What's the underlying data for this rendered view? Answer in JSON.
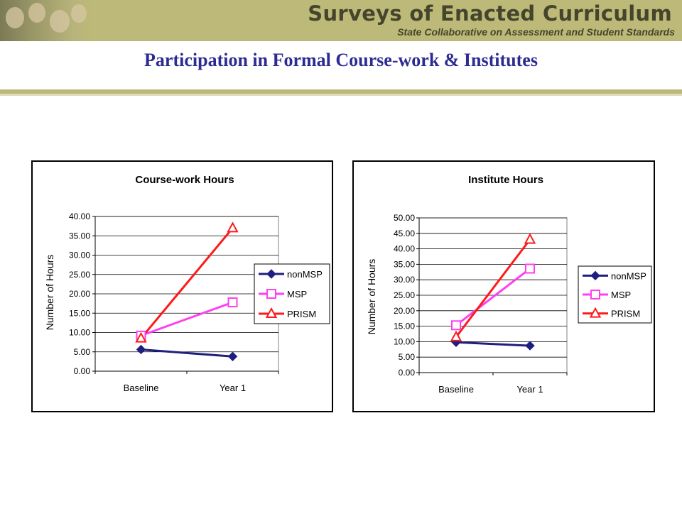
{
  "banner": {
    "title": "Surveys of Enacted Curriculum",
    "subtitle": "State Collaborative on Assessment and Student Standards"
  },
  "page_title": "Participation in Formal Course-work & Institutes",
  "colors": {
    "banner": "#bdb978",
    "title": "#2c2b91",
    "nonMSP": "#1f1f80",
    "MSP": "#ff3ff2",
    "PRISM": "#ff1a1a",
    "plot_bg": "#ffffff"
  },
  "chart_data": [
    {
      "type": "line",
      "title": "Course-work Hours",
      "ylabel": "Number of Hours",
      "xlabel": "",
      "categories": [
        "Baseline",
        "Year 1"
      ],
      "ylim": [
        0,
        40
      ],
      "ystep": 5,
      "ytick_labels": [
        "0.00",
        "5.00",
        "10.00",
        "15.00",
        "20.00",
        "25.00",
        "30.00",
        "35.00",
        "40.00"
      ],
      "grid": true,
      "legend": "right",
      "series": [
        {
          "name": "nonMSP",
          "values": [
            5.6,
            3.8
          ],
          "marker": "diamond",
          "color": "#1f1f80"
        },
        {
          "name": "MSP",
          "values": [
            9.2,
            17.8
          ],
          "marker": "square",
          "color": "#ff3ff2"
        },
        {
          "name": "PRISM",
          "values": [
            8.5,
            37.0
          ],
          "marker": "triangle",
          "color": "#ff1a1a"
        }
      ]
    },
    {
      "type": "line",
      "title": "Institute Hours",
      "ylabel": "Number of Hours",
      "xlabel": "",
      "categories": [
        "Baseline",
        "Year 1"
      ],
      "ylim": [
        0,
        50
      ],
      "ystep": 5,
      "ytick_labels": [
        "0.00",
        "5.00",
        "10.00",
        "15.00",
        "20.00",
        "25.00",
        "30.00",
        "35.00",
        "40.00",
        "45.00",
        "50.00"
      ],
      "grid": true,
      "legend": "right",
      "series": [
        {
          "name": "nonMSP",
          "values": [
            9.8,
            8.7
          ],
          "marker": "diamond",
          "color": "#1f1f80"
        },
        {
          "name": "MSP",
          "values": [
            15.3,
            33.6
          ],
          "marker": "square",
          "color": "#ff3ff2"
        },
        {
          "name": "PRISM",
          "values": [
            11.5,
            43.0
          ],
          "marker": "triangle",
          "color": "#ff1a1a"
        }
      ]
    }
  ]
}
